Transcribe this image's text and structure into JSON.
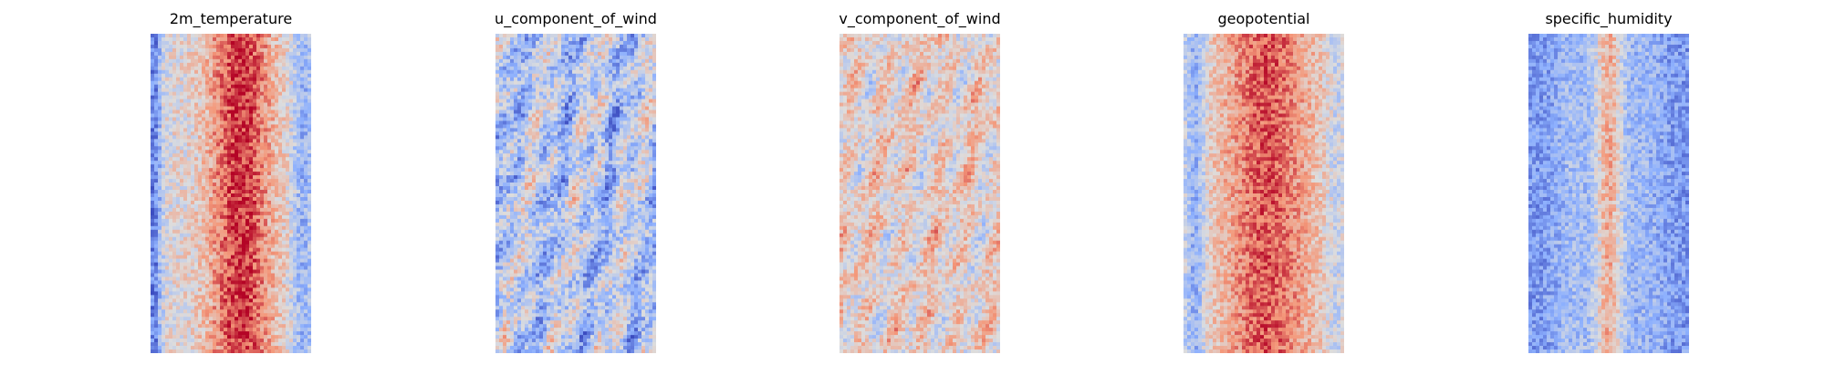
{
  "chart_data": [
    {
      "type": "heatmap",
      "title": "2m_temperature",
      "colormap": "coolwarm",
      "axis": "off",
      "pattern": {
        "base": 0.5,
        "bands": [
          {
            "center": 0.56,
            "width": 0.2,
            "amp": 0.42
          },
          {
            "center": 0.02,
            "width": 0.045,
            "amp": -0.38
          },
          {
            "center": 0.95,
            "width": 0.07,
            "amp": -0.22
          }
        ],
        "waves": [],
        "noise": 0.14,
        "seed": 11
      }
    },
    {
      "type": "heatmap",
      "title": "u_component_of_wind",
      "colormap": "coolwarm",
      "axis": "off",
      "pattern": {
        "base": 0.38,
        "bands": [],
        "waves": [
          {
            "amp": 0.17,
            "kx": 3.1,
            "ky": 6.3,
            "phase": 0.5
          },
          {
            "amp": 0.09,
            "kx": 7.0,
            "ky": 2.2,
            "phase": 1.8
          }
        ],
        "noise": 0.17,
        "seed": 23
      }
    },
    {
      "type": "heatmap",
      "title": "v_component_of_wind",
      "colormap": "coolwarm",
      "axis": "off",
      "pattern": {
        "base": 0.55,
        "bands": [],
        "waves": [
          {
            "amp": 0.13,
            "kx": 5.2,
            "ky": 5.8,
            "phase": 2.1
          },
          {
            "amp": 0.07,
            "kx": 2.0,
            "ky": 9.5,
            "phase": 0.3
          }
        ],
        "noise": 0.14,
        "seed": 37
      }
    },
    {
      "type": "heatmap",
      "title": "geopotential",
      "colormap": "coolwarm",
      "axis": "off",
      "pattern": {
        "base": 0.57,
        "bands": [
          {
            "center": 0.52,
            "width": 0.24,
            "amp": 0.29
          },
          {
            "center": 0.07,
            "width": 0.07,
            "amp": -0.3
          },
          {
            "center": 0.95,
            "width": 0.07,
            "amp": -0.14
          }
        ],
        "waves": [],
        "noise": 0.13,
        "seed": 41
      }
    },
    {
      "type": "heatmap",
      "title": "specific_humidity",
      "colormap": "coolwarm",
      "axis": "off",
      "pattern": {
        "base": 0.2,
        "bands": [
          {
            "center": 0.5,
            "width": 0.09,
            "amp": 0.46
          },
          {
            "center": 0.28,
            "width": 0.13,
            "amp": 0.12
          },
          {
            "center": 0.72,
            "width": 0.13,
            "amp": 0.1
          }
        ],
        "waves": [],
        "noise": 0.13,
        "seed": 53
      }
    }
  ]
}
